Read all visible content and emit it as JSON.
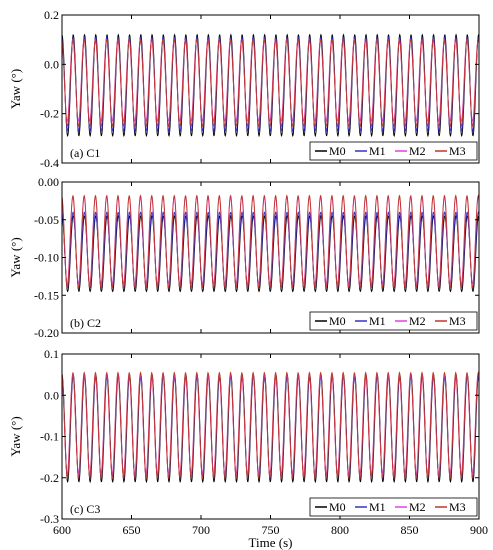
{
  "chart_data": [
    {
      "type": "line",
      "panel_label": "(a) C1",
      "xlabel": "",
      "ylabel": "Yaw (°)",
      "xlim": [
        600,
        900
      ],
      "ylim": [
        -0.4,
        0.2
      ],
      "yticks": [
        "-0.4",
        "-0.2",
        "0.0",
        "0.2"
      ],
      "ytick_values": [
        -0.4,
        -0.2,
        0.0,
        0.2
      ],
      "xticks": [],
      "legend_position": "bottom-right",
      "period_s": 8.1,
      "series": [
        {
          "name": "M0",
          "color": "#000000",
          "max": 0.12,
          "min": -0.29,
          "phase_deg": 0
        },
        {
          "name": "M1",
          "color": "#3333cc",
          "max": 0.11,
          "min": -0.27,
          "phase_deg": 6
        },
        {
          "name": "M2",
          "color": "#e040e0",
          "max": 0.1,
          "min": -0.23,
          "phase_deg": 14
        },
        {
          "name": "M3",
          "color": "#c0392b",
          "max": 0.1,
          "min": -0.25,
          "phase_deg": 10
        }
      ]
    },
    {
      "type": "line",
      "panel_label": "(b) C2",
      "xlabel": "",
      "ylabel": "Yaw (°)",
      "xlim": [
        600,
        900
      ],
      "ylim": [
        -0.2,
        0.0
      ],
      "yticks": [
        "-0.20",
        "-0.15",
        "-0.10",
        "-0.05",
        "0.00"
      ],
      "ytick_values": [
        -0.2,
        -0.15,
        -0.1,
        -0.05,
        0.0
      ],
      "xticks": [],
      "legend_position": "bottom-right",
      "period_s": 8.1,
      "series": [
        {
          "name": "M0",
          "color": "#000000",
          "max": -0.045,
          "min": -0.145,
          "phase_deg": 0
        },
        {
          "name": "M1",
          "color": "#3333cc",
          "max": -0.04,
          "min": -0.14,
          "phase_deg": 6
        },
        {
          "name": "M2",
          "color": "#e040e0",
          "max": -0.02,
          "min": -0.135,
          "phase_deg": 14
        },
        {
          "name": "M3",
          "color": "#c0392b",
          "max": -0.018,
          "min": -0.14,
          "phase_deg": 10
        }
      ]
    },
    {
      "type": "line",
      "panel_label": "(c) C3",
      "xlabel": "Time (s)",
      "ylabel": "Yaw (°)",
      "xlim": [
        600,
        900
      ],
      "ylim": [
        -0.3,
        0.1
      ],
      "yticks": [
        "-0.3",
        "-0.2",
        "-0.1",
        "0.0",
        "0.1"
      ],
      "ytick_values": [
        -0.3,
        -0.2,
        -0.1,
        0.0,
        0.1
      ],
      "xticks": [
        "600",
        "650",
        "700",
        "750",
        "800",
        "850",
        "900"
      ],
      "legend_position": "bottom-right",
      "period_s": 8.1,
      "series": [
        {
          "name": "M0",
          "color": "#000000",
          "max": 0.05,
          "min": -0.21,
          "phase_deg": 0
        },
        {
          "name": "M1",
          "color": "#3333cc",
          "max": 0.045,
          "min": -0.2,
          "phase_deg": 6
        },
        {
          "name": "M2",
          "color": "#e040e0",
          "max": 0.05,
          "min": -0.19,
          "phase_deg": 14
        },
        {
          "name": "M3",
          "color": "#c0392b",
          "max": 0.055,
          "min": -0.2,
          "phase_deg": 10
        }
      ]
    }
  ]
}
